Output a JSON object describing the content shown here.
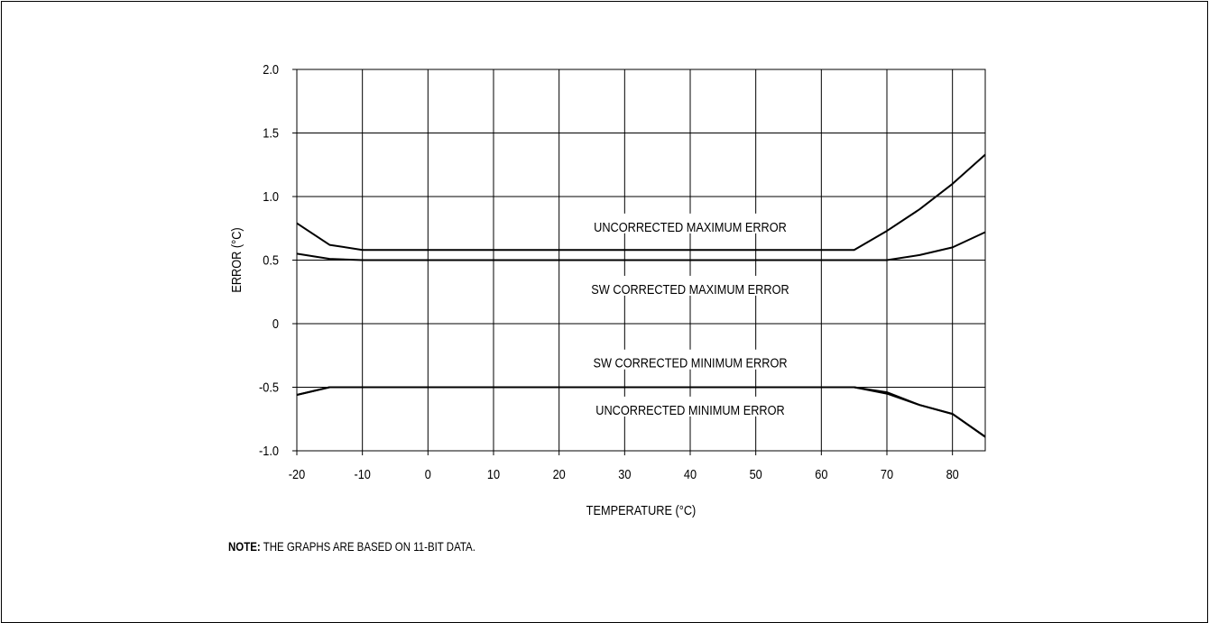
{
  "chart_data": {
    "type": "line",
    "xlabel": "TEMPERATURE (°C)",
    "ylabel": "ERROR (°C)",
    "xlim": [
      -20,
      85
    ],
    "ylim": [
      -1.0,
      2.0
    ],
    "x_ticks": [
      -20,
      -10,
      0,
      10,
      20,
      30,
      40,
      50,
      60,
      70,
      80
    ],
    "x_tick_labels": [
      "-20",
      "-10",
      "0",
      "10",
      "20",
      "30",
      "40",
      "50",
      "60",
      "70",
      "80"
    ],
    "y_ticks": [
      2.0,
      1.5,
      1.0,
      0.5,
      0,
      -0.5,
      -1.0
    ],
    "y_tick_labels": [
      "2.0",
      "1.5",
      "1.0",
      "0.5",
      "0",
      "-0.5",
      "-1.0"
    ],
    "grid": true,
    "series": [
      {
        "name": "UNCORRECTED MAXIMUM ERROR",
        "x": [
          -20,
          -15,
          -10,
          0,
          10,
          20,
          30,
          40,
          50,
          60,
          65,
          70,
          75,
          80,
          85
        ],
        "y": [
          0.79,
          0.62,
          0.58,
          0.58,
          0.58,
          0.58,
          0.58,
          0.58,
          0.58,
          0.58,
          0.58,
          0.73,
          0.9,
          1.1,
          1.33
        ]
      },
      {
        "name": "SW CORRECTED MAXIMUM ERROR",
        "x": [
          -20,
          -15,
          -10,
          0,
          10,
          20,
          30,
          40,
          50,
          60,
          70,
          75,
          80,
          85
        ],
        "y": [
          0.55,
          0.51,
          0.5,
          0.5,
          0.5,
          0.5,
          0.5,
          0.5,
          0.5,
          0.5,
          0.5,
          0.54,
          0.6,
          0.72
        ]
      },
      {
        "name": "SW CORRECTED MINIMUM ERROR",
        "x": [
          -20,
          -15,
          -10,
          0,
          10,
          20,
          30,
          40,
          50,
          60,
          65,
          70,
          75,
          80,
          85
        ],
        "y": [
          -0.56,
          -0.5,
          -0.5,
          -0.5,
          -0.5,
          -0.5,
          -0.5,
          -0.5,
          -0.5,
          -0.5,
          -0.5,
          -0.54,
          -0.64,
          -0.71,
          -0.89
        ]
      },
      {
        "name": "UNCORRECTED MINIMUM ERROR",
        "x": [
          -20,
          -15,
          -10,
          0,
          10,
          20,
          30,
          40,
          50,
          60,
          65,
          70,
          75,
          80,
          85
        ],
        "y": [
          -0.56,
          -0.5,
          -0.5,
          -0.5,
          -0.5,
          -0.5,
          -0.5,
          -0.5,
          -0.5,
          -0.5,
          -0.5,
          -0.55,
          -0.64,
          -0.71,
          -0.89
        ]
      }
    ],
    "annotations": [
      {
        "text": "UNCORRECTED MAXIMUM ERROR",
        "x": 40,
        "y": 0.76
      },
      {
        "text": "SW CORRECTED MAXIMUM ERROR",
        "x": 40,
        "y": 0.27
      },
      {
        "text": "SW CORRECTED MINIMUM ERROR",
        "x": 40,
        "y": -0.31
      },
      {
        "text": "UNCORRECTED MINIMUM ERROR",
        "x": 40,
        "y": -0.68
      }
    ]
  },
  "note": {
    "label": "NOTE:",
    "text": " THE GRAPHS ARE BASED ON 11-BIT DATA."
  }
}
